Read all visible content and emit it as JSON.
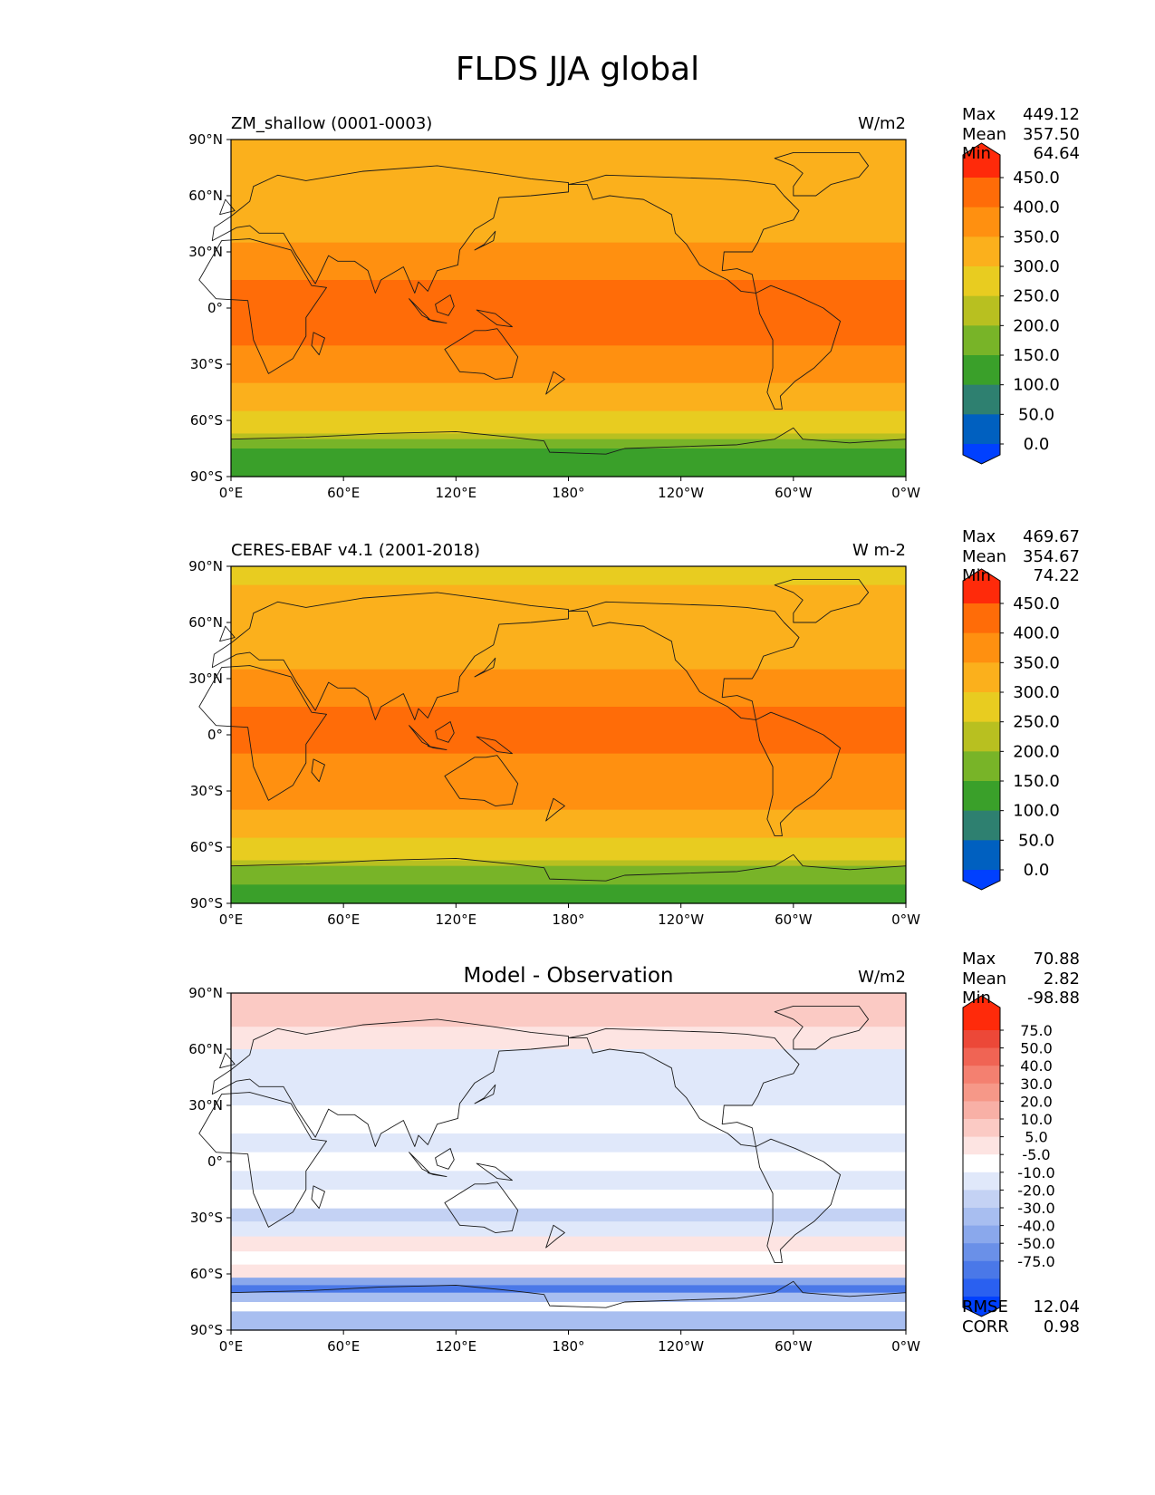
{
  "figure": {
    "title": "FLDS JJA global"
  },
  "axes": {
    "x_ticks": [
      "0°E",
      "60°E",
      "120°E",
      "180°",
      "120°W",
      "60°W",
      "0°W"
    ],
    "y_ticks": [
      "90°N",
      "60°N",
      "30°N",
      "0°",
      "30°S",
      "60°S",
      "90°S"
    ]
  },
  "colors": {
    "panel_levels": [
      "#0040ff",
      "#0060c0",
      "#2e8070",
      "#3aa02a",
      "#78b428",
      "#b8c020",
      "#e8cc20",
      "#fbb01c",
      "#ff9010",
      "#ff6c08",
      "#ff2a0a"
    ],
    "diff_levels": [
      "#0040ff",
      "#2a60f0",
      "#4a78e8",
      "#6a90e8",
      "#8aa8ec",
      "#a8bef0",
      "#c4d2f4",
      "#e0e8fa",
      "#ffffff",
      "#fde4e2",
      "#fbcac4",
      "#f8b0a6",
      "#f69888",
      "#f48070",
      "#f06454",
      "#ec4838",
      "#ff2a0a"
    ]
  },
  "panels": [
    {
      "left_title": "ZM_shallow (0001-0003)",
      "center_title": "",
      "units": "W/m2",
      "stats": {
        "max_label": "Max",
        "max": "449.12",
        "mean_label": "Mean",
        "mean": "357.50",
        "min_label": "Min",
        "min": "64.64"
      },
      "colorbar_labels": [
        "450.0",
        "400.0",
        "350.0",
        "300.0",
        "250.0",
        "200.0",
        "150.0",
        "100.0",
        "50.0",
        "0.0"
      ],
      "extra_stats": []
    },
    {
      "left_title": "CERES-EBAF v4.1 (2001-2018)",
      "center_title": "",
      "units": "W m-2",
      "stats": {
        "max_label": "Max",
        "max": "469.67",
        "mean_label": "Mean",
        "mean": "354.67",
        "min_label": "Min",
        "min": "74.22"
      },
      "colorbar_labels": [
        "450.0",
        "400.0",
        "350.0",
        "300.0",
        "250.0",
        "200.0",
        "150.0",
        "100.0",
        "50.0",
        "0.0"
      ],
      "extra_stats": []
    },
    {
      "left_title": "",
      "center_title": "Model - Observation",
      "units": "W/m2",
      "stats": {
        "max_label": "Max",
        "max": "70.88",
        "mean_label": "Mean",
        "mean": "2.82",
        "min_label": "Min",
        "min": "-98.88"
      },
      "colorbar_labels": [
        "75.0",
        "50.0",
        "40.0",
        "30.0",
        "20.0",
        "10.0",
        "5.0",
        "-5.0",
        "-10.0",
        "-20.0",
        "-30.0",
        "-40.0",
        "-50.0",
        "-75.0"
      ],
      "extra_stats": [
        {
          "label": "RMSE",
          "value": "12.04"
        },
        {
          "label": "CORR",
          "value": "0.98"
        }
      ]
    }
  ],
  "chart_data": [
    {
      "type": "heatmap",
      "title": "ZM_shallow (0001-0003)",
      "units": "W/m2",
      "x": [
        "0°E",
        "60°E",
        "120°E",
        "180°",
        "120°W",
        "60°W",
        "0°W"
      ],
      "y": [
        "90°N",
        "60°N",
        "30°N",
        "0°",
        "30°S",
        "60°S",
        "90°S"
      ],
      "color_levels": [
        0,
        50,
        100,
        150,
        200,
        250,
        300,
        350,
        400,
        450
      ],
      "zonal_profile": [
        {
          "lat": 90,
          "value": 320
        },
        {
          "lat": 75,
          "value": 320
        },
        {
          "lat": 60,
          "value": 330
        },
        {
          "lat": 45,
          "value": 345
        },
        {
          "lat": 35,
          "value": 375
        },
        {
          "lat": 30,
          "value": 395
        },
        {
          "lat": 15,
          "value": 410
        },
        {
          "lat": 0,
          "value": 410
        },
        {
          "lat": -10,
          "value": 405
        },
        {
          "lat": -20,
          "value": 380
        },
        {
          "lat": -30,
          "value": 355
        },
        {
          "lat": -40,
          "value": 330
        },
        {
          "lat": -50,
          "value": 310
        },
        {
          "lat": -55,
          "value": 290
        },
        {
          "lat": -62,
          "value": 265
        },
        {
          "lat": -67,
          "value": 230
        },
        {
          "lat": -70,
          "value": 175
        },
        {
          "lat": -75,
          "value": 120
        },
        {
          "lat": -90,
          "value": 90
        }
      ],
      "stats": {
        "max": 449.12,
        "mean": 357.5,
        "min": 64.64
      }
    },
    {
      "type": "heatmap",
      "title": "CERES-EBAF v4.1 (2001-2018)",
      "units": "W m-2",
      "x": [
        "0°E",
        "60°E",
        "120°E",
        "180°",
        "120°W",
        "60°W",
        "0°W"
      ],
      "y": [
        "90°N",
        "60°N",
        "30°N",
        "0°",
        "30°S",
        "60°S",
        "90°S"
      ],
      "color_levels": [
        0,
        50,
        100,
        150,
        200,
        250,
        300,
        350,
        400,
        450
      ],
      "zonal_profile": [
        {
          "lat": 90,
          "value": 295
        },
        {
          "lat": 80,
          "value": 300
        },
        {
          "lat": 70,
          "value": 320
        },
        {
          "lat": 60,
          "value": 330
        },
        {
          "lat": 45,
          "value": 345
        },
        {
          "lat": 35,
          "value": 375
        },
        {
          "lat": 30,
          "value": 395
        },
        {
          "lat": 15,
          "value": 410
        },
        {
          "lat": 0,
          "value": 405
        },
        {
          "lat": -10,
          "value": 395
        },
        {
          "lat": -20,
          "value": 375
        },
        {
          "lat": -30,
          "value": 350
        },
        {
          "lat": -40,
          "value": 325
        },
        {
          "lat": -50,
          "value": 305
        },
        {
          "lat": -55,
          "value": 285
        },
        {
          "lat": -62,
          "value": 260
        },
        {
          "lat": -67,
          "value": 225
        },
        {
          "lat": -70,
          "value": 190
        },
        {
          "lat": -75,
          "value": 150
        },
        {
          "lat": -80,
          "value": 120
        },
        {
          "lat": -90,
          "value": 135
        }
      ],
      "stats": {
        "max": 469.67,
        "mean": 354.67,
        "min": 74.22
      }
    },
    {
      "type": "heatmap",
      "title": "Model - Observation",
      "units": "W/m2",
      "x": [
        "0°E",
        "60°E",
        "120°E",
        "180°",
        "120°W",
        "60°W",
        "0°W"
      ],
      "y": [
        "90°N",
        "60°N",
        "30°N",
        "0°",
        "30°S",
        "60°S",
        "90°S"
      ],
      "color_levels": [
        -75,
        -50,
        -40,
        -30,
        -20,
        -10,
        -5,
        5,
        10,
        20,
        30,
        40,
        50,
        75
      ],
      "zonal_profile": [
        {
          "lat": 90,
          "value": 25
        },
        {
          "lat": 80,
          "value": 25
        },
        {
          "lat": 72,
          "value": 12
        },
        {
          "lat": 60,
          "value": 3
        },
        {
          "lat": 45,
          "value": 0
        },
        {
          "lat": 30,
          "value": 7
        },
        {
          "lat": 15,
          "value": 3
        },
        {
          "lat": 5,
          "value": 8
        },
        {
          "lat": -5,
          "value": 3
        },
        {
          "lat": -15,
          "value": 8
        },
        {
          "lat": -25,
          "value": -6
        },
        {
          "lat": -32,
          "value": 3
        },
        {
          "lat": -40,
          "value": 12
        },
        {
          "lat": -48,
          "value": 8
        },
        {
          "lat": -55,
          "value": 12
        },
        {
          "lat": -62,
          "value": -25
        },
        {
          "lat": -66,
          "value": -45
        },
        {
          "lat": -70,
          "value": -20
        },
        {
          "lat": -75,
          "value": 8
        },
        {
          "lat": -80,
          "value": -12
        },
        {
          "lat": -90,
          "value": -12
        }
      ],
      "stats": {
        "max": 70.88,
        "mean": 2.82,
        "min": -98.88,
        "rmse": 12.04,
        "corr": 0.98
      }
    }
  ]
}
